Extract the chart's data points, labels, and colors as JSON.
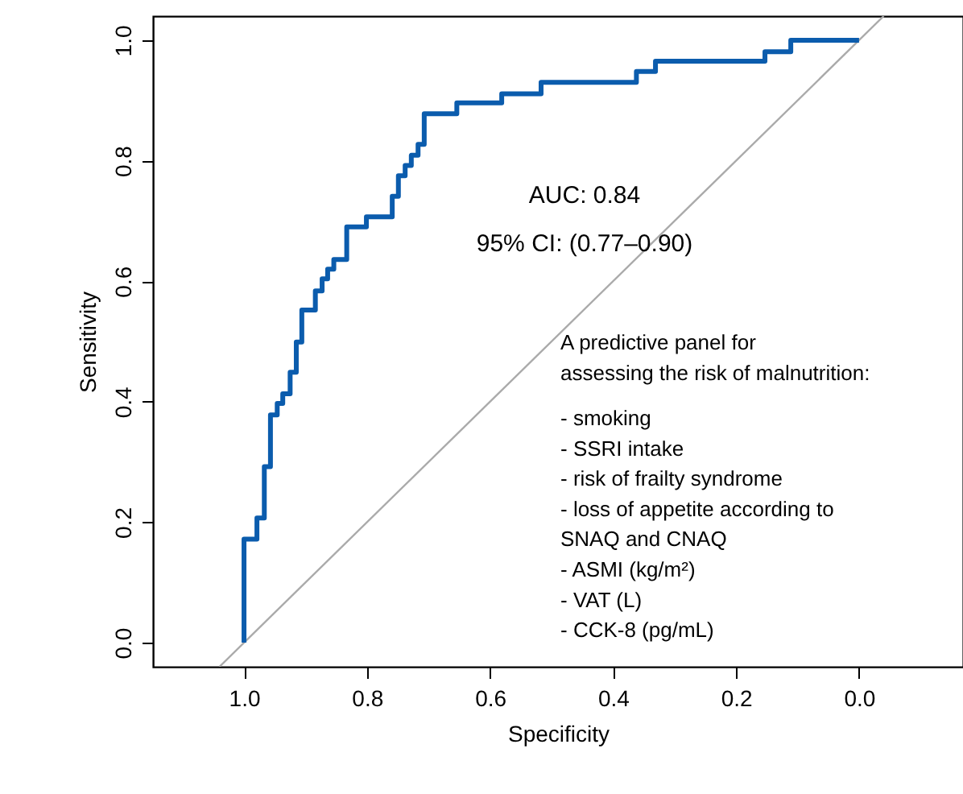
{
  "chart_data": {
    "type": "line",
    "xlabel": "Specificity",
    "ylabel": "Sensitivity",
    "xlim": [
      1.148,
      -0.169
    ],
    "ylim": [
      -0.04,
      1.04
    ],
    "xticks": [
      {
        "value": 1.0,
        "label": "1.0"
      },
      {
        "value": 0.8,
        "label": "0.8"
      },
      {
        "value": 0.6,
        "label": "0.6"
      },
      {
        "value": 0.4,
        "label": "0.4"
      },
      {
        "value": 0.2,
        "label": "0.2"
      },
      {
        "value": 0.0,
        "label": "0.0"
      }
    ],
    "yticks": [
      {
        "value": 0.0,
        "label": "0.0"
      },
      {
        "value": 0.2,
        "label": "0.2"
      },
      {
        "value": 0.4,
        "label": "0.4"
      },
      {
        "value": 0.6,
        "label": "0.6"
      },
      {
        "value": 0.8,
        "label": "0.8"
      },
      {
        "value": 1.0,
        "label": "1.0"
      }
    ],
    "grid": false,
    "line_style": "solid",
    "marker": "none",
    "series": [
      {
        "type": "line",
        "color": "#aaaaaa",
        "x": [
          1.04,
          -0.04
        ],
        "values": [
          -0.04,
          1.04
        ]
      },
      {
        "type": "line",
        "color": "#0b5cad",
        "x": [
          1,
          1,
          0.979,
          0.979,
          0.967,
          0.967,
          0.957,
          0.957,
          0.946,
          0.946,
          0.937,
          0.937,
          0.925,
          0.925,
          0.915,
          0.915,
          0.906,
          0.906,
          0.884,
          0.884,
          0.873,
          0.873,
          0.864,
          0.864,
          0.854,
          0.854,
          0.833,
          0.833,
          0.801,
          0.801,
          0.759,
          0.759,
          0.749,
          0.749,
          0.738,
          0.738,
          0.728,
          0.728,
          0.717,
          0.717,
          0.707,
          0.707,
          0.654,
          0.654,
          0.581,
          0.581,
          0.517,
          0.517,
          0.362,
          0.362,
          0.331,
          0.331,
          0.153,
          0.153,
          0.111,
          0.111,
          0
        ],
        "values": [
          0,
          0.172,
          0.172,
          0.207,
          0.207,
          0.292,
          0.292,
          0.378,
          0.378,
          0.397,
          0.397,
          0.413,
          0.413,
          0.449,
          0.449,
          0.499,
          0.499,
          0.552,
          0.552,
          0.584,
          0.584,
          0.604,
          0.604,
          0.62,
          0.62,
          0.636,
          0.636,
          0.69,
          0.69,
          0.707,
          0.707,
          0.741,
          0.741,
          0.775,
          0.775,
          0.792,
          0.792,
          0.809,
          0.809,
          0.827,
          0.827,
          0.878,
          0.878,
          0.896,
          0.896,
          0.911,
          0.911,
          0.93,
          0.93,
          0.948,
          0.948,
          0.965,
          0.965,
          0.981,
          0.981,
          1.0,
          1.0
        ]
      }
    ],
    "annotations": [
      "AUC: 0.84",
      "95% CI: (0.77–0.90)",
      "A predictive panel for\nassessing the risk of malnutrition:",
      "- smoking\n- SSRI intake\n- risk of frailty syndrome\n- loss of appetite according to\nSNAQ and CNAQ\n- ASMI (kg/m²)\n- VAT (L)\n- CCK-8 (pg/mL)"
    ]
  }
}
